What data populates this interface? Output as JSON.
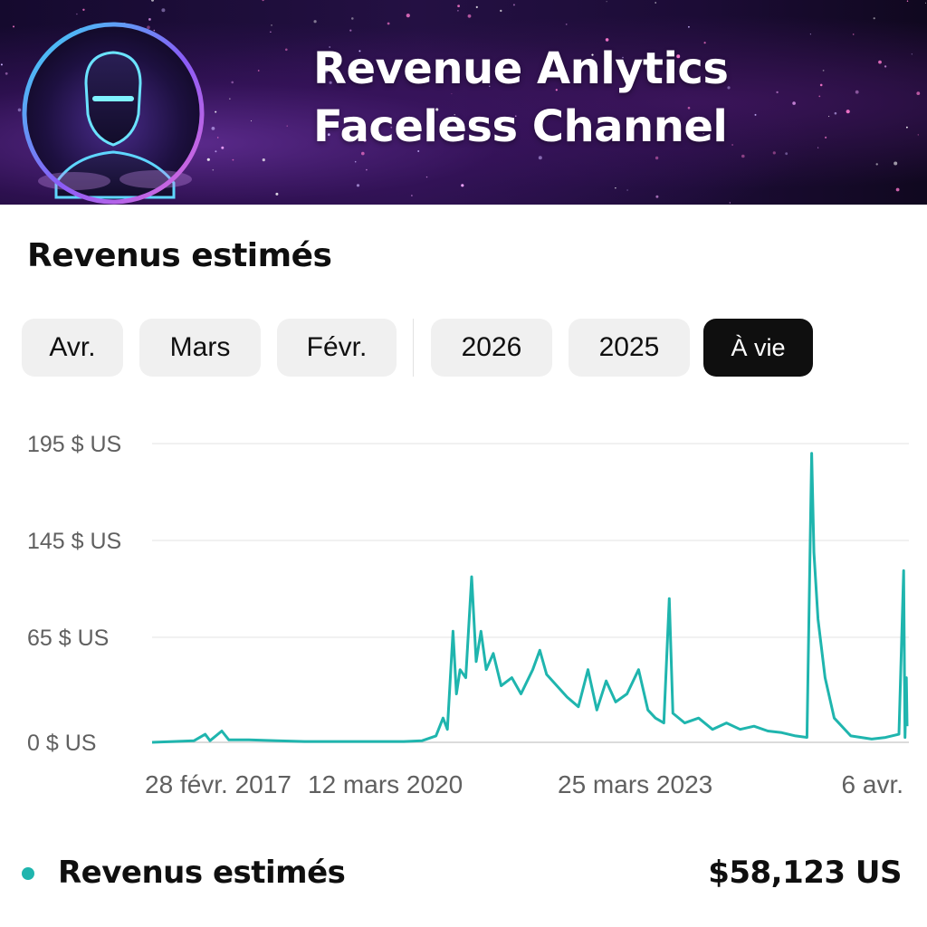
{
  "banner": {
    "title_line1": "Revenue Anlytics",
    "title_line2": "Faceless Channel",
    "avatar_icon": "faceless-avatar-icon"
  },
  "section": {
    "title": "Revenus estimés"
  },
  "filters": {
    "chips": [
      "Avr.",
      "Mars",
      "Févr.",
      "2026",
      "2025",
      "À vie"
    ],
    "active": "À vie"
  },
  "colors": {
    "accent": "#1fb5ae",
    "active_chip": "#0f0f0f",
    "chip_bg": "#f0f0f0"
  },
  "chart_data": {
    "type": "line",
    "y_ticks": [
      "195 $ US",
      "145 $ US",
      "65 $ US",
      "0 $ US"
    ],
    "x_ticks": [
      "28 févr. 2017",
      "12 mars 2020",
      "25 mars 2023",
      "6 avr."
    ],
    "grid": true,
    "series": [
      {
        "name": "Revenus estimés",
        "color": "#1fb5ae",
        "points": [
          [
            "2017-02-28",
            0
          ],
          [
            "2017-06-01",
            0.5
          ],
          [
            "2017-09-01",
            1
          ],
          [
            "2017-10-20",
            5
          ],
          [
            "2017-11-10",
            1
          ],
          [
            "2018-01-01",
            7
          ],
          [
            "2018-02-01",
            1.5
          ],
          [
            "2018-05-01",
            1.5
          ],
          [
            "2018-09-01",
            1
          ],
          [
            "2019-01-01",
            0.5
          ],
          [
            "2019-06-01",
            0.5
          ],
          [
            "2019-12-01",
            0.5
          ],
          [
            "2020-03-12",
            0.5
          ],
          [
            "2020-06-01",
            1
          ],
          [
            "2020-08-01",
            4
          ],
          [
            "2020-09-01",
            15
          ],
          [
            "2020-09-20",
            8
          ],
          [
            "2020-10-15",
            70
          ],
          [
            "2020-10-30",
            30
          ],
          [
            "2020-11-15",
            45
          ],
          [
            "2020-12-10",
            40
          ],
          [
            "2021-01-05",
            115
          ],
          [
            "2021-01-25",
            50
          ],
          [
            "2021-02-15",
            70
          ],
          [
            "2021-03-10",
            45
          ],
          [
            "2021-04-10",
            55
          ],
          [
            "2021-05-15",
            35
          ],
          [
            "2021-07-01",
            40
          ],
          [
            "2021-08-10",
            30
          ],
          [
            "2021-10-01",
            45
          ],
          [
            "2021-11-01",
            57
          ],
          [
            "2021-12-01",
            42
          ],
          [
            "2022-01-15",
            35
          ],
          [
            "2022-03-01",
            28
          ],
          [
            "2022-04-20",
            22
          ],
          [
            "2022-06-01",
            45
          ],
          [
            "2022-07-10",
            20
          ],
          [
            "2022-08-20",
            38
          ],
          [
            "2022-10-01",
            25
          ],
          [
            "2022-11-20",
            30
          ],
          [
            "2023-01-10",
            45
          ],
          [
            "2023-02-20",
            20
          ],
          [
            "2023-03-25",
            15
          ],
          [
            "2023-05-01",
            12
          ],
          [
            "2023-05-25",
            97
          ],
          [
            "2023-06-10",
            18
          ],
          [
            "2023-08-01",
            12
          ],
          [
            "2023-10-01",
            15
          ],
          [
            "2023-12-01",
            8
          ],
          [
            "2024-02-01",
            12
          ],
          [
            "2024-04-01",
            8
          ],
          [
            "2024-06-01",
            10
          ],
          [
            "2024-08-01",
            7
          ],
          [
            "2024-10-01",
            6
          ],
          [
            "2024-12-01",
            4
          ],
          [
            "2025-01-20",
            3
          ],
          [
            "2025-02-10",
            190
          ],
          [
            "2025-02-20",
            135
          ],
          [
            "2025-03-10",
            80
          ],
          [
            "2025-04-10",
            40
          ],
          [
            "2025-05-20",
            15
          ],
          [
            "2025-08-01",
            4
          ],
          [
            "2025-11-01",
            2
          ],
          [
            "2026-01-01",
            3
          ],
          [
            "2026-03-01",
            5
          ],
          [
            "2026-03-22",
            120
          ],
          [
            "2026-03-28",
            3
          ],
          [
            "2026-04-03",
            40
          ],
          [
            "2026-04-06",
            10
          ]
        ]
      }
    ]
  },
  "legend": {
    "label": "Revenus estimés",
    "value": "$58,123 US"
  }
}
